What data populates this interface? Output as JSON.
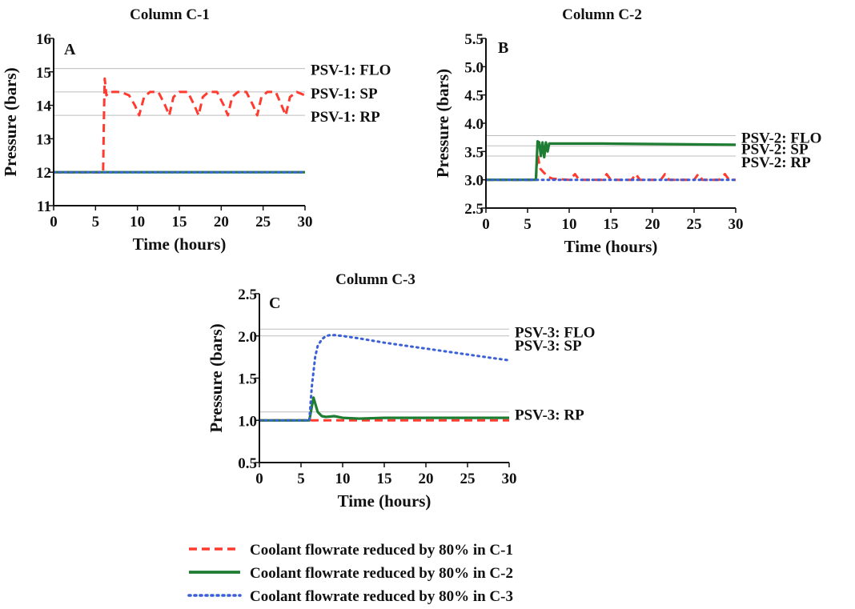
{
  "colors": {
    "c1": "#ff3b30",
    "c2": "#1e7d32",
    "c3": "#3a5fd6",
    "ref": "#bdbdbd",
    "axis": "#111111"
  },
  "legend": [
    {
      "series": "c1",
      "style": "dash",
      "label": "Coolant flowrate reduced by 80% in C-1"
    },
    {
      "series": "c2",
      "style": "solid",
      "label": "Coolant flowrate reduced by 80% in C-2"
    },
    {
      "series": "c3",
      "style": "dot",
      "label": "Coolant flowrate reduced by 80% in C-3"
    }
  ],
  "chart_data": [
    {
      "type": "line",
      "title": "Column C-1",
      "panel": "A",
      "xlabel": "Time (hours)",
      "ylabel": "Pressure (bars)",
      "xlim": [
        0,
        30
      ],
      "ylim": [
        11,
        16
      ],
      "xticks": [
        0,
        5,
        10,
        15,
        20,
        25,
        30
      ],
      "yticks": [
        11,
        12,
        13,
        14,
        15,
        16
      ],
      "ytick_labels": [
        "11",
        "12",
        "13",
        "14",
        "15",
        "16"
      ],
      "reference_lines": [
        {
          "label": "PSV-1: FLO",
          "y": 15.1
        },
        {
          "label": "PSV-1: SP",
          "y": 14.4
        },
        {
          "label": "PSV-1: RP",
          "y": 13.7
        }
      ],
      "series": [
        {
          "key": "c1",
          "x": [
            0,
            5.9,
            6.0,
            6.1,
            6.3,
            6.6,
            7,
            8,
            9,
            9.7,
            10.2,
            10.8,
            11.5,
            12.5,
            13.3,
            13.8,
            14.3,
            15,
            16,
            16.8,
            17.3,
            17.8,
            18.5,
            19.5,
            20.3,
            20.8,
            21.3,
            22,
            23,
            23.8,
            24.3,
            24.8,
            25.5,
            26.5,
            27.2,
            27.7,
            28.2,
            29,
            29.5,
            30
          ],
          "y": [
            12,
            12,
            13.6,
            14.8,
            14.3,
            14.4,
            14.4,
            14.4,
            14.3,
            14.0,
            13.7,
            14.25,
            14.4,
            14.4,
            14.0,
            13.7,
            14.25,
            14.4,
            14.4,
            14.0,
            13.7,
            14.25,
            14.4,
            14.4,
            14.0,
            13.7,
            14.25,
            14.4,
            14.4,
            14.0,
            13.7,
            14.25,
            14.4,
            14.4,
            14.0,
            13.7,
            14.25,
            14.4,
            14.35,
            14.3
          ]
        },
        {
          "key": "c2",
          "x": [
            0,
            30
          ],
          "y": [
            12,
            12
          ]
        },
        {
          "key": "c3",
          "x": [
            0,
            30
          ],
          "y": [
            12,
            12
          ]
        }
      ]
    },
    {
      "type": "line",
      "title": "Column C-2",
      "panel": "B",
      "xlabel": "Time (hours)",
      "ylabel": "Pressure (bars)",
      "xlim": [
        0,
        30
      ],
      "ylim": [
        2.5,
        5.5
      ],
      "xticks": [
        0,
        5,
        10,
        15,
        20,
        25,
        30
      ],
      "yticks": [
        2.5,
        3.0,
        3.5,
        4.0,
        4.5,
        5.0,
        5.5
      ],
      "ytick_labels": [
        "2.5",
        "3.0",
        "3.5",
        "4.0",
        "4.5",
        "5.0",
        "5.5"
      ],
      "reference_lines": [
        {
          "label": "PSV-2: FLO",
          "y": 3.78
        },
        {
          "label": "PSV-2: SP",
          "y": 3.6
        },
        {
          "label": "PSV-2: RP",
          "y": 3.42
        }
      ],
      "series": [
        {
          "key": "c1",
          "x": [
            0,
            6.0,
            6.2,
            6.5,
            7,
            7.5,
            8,
            10,
            10.7,
            11.2,
            12,
            14,
            14.5,
            15,
            16,
            17.5,
            18,
            18.5,
            20,
            21,
            21.5,
            22,
            24,
            25,
            25.5,
            26,
            28,
            28.7,
            29.2,
            30
          ],
          "y": [
            3.0,
            3.0,
            3.45,
            3.2,
            3.12,
            3.05,
            3.02,
            3.0,
            3.1,
            3.0,
            3.0,
            3.0,
            3.1,
            3.0,
            3.0,
            3.0,
            3.1,
            3.0,
            3.0,
            3.0,
            3.1,
            3.0,
            3.0,
            3.0,
            3.1,
            3.0,
            3.0,
            3.1,
            3.0,
            3.0
          ]
        },
        {
          "key": "c2",
          "x": [
            0,
            6.0,
            6.2,
            6.4,
            6.6,
            6.8,
            7.0,
            7.2,
            7.4,
            7.6,
            8,
            14,
            30
          ],
          "y": [
            3.0,
            3.0,
            3.68,
            3.66,
            3.42,
            3.66,
            3.4,
            3.66,
            3.5,
            3.64,
            3.64,
            3.64,
            3.62
          ]
        },
        {
          "key": "c3",
          "x": [
            0,
            30
          ],
          "y": [
            3.0,
            3.0
          ]
        }
      ]
    },
    {
      "type": "line",
      "title": "Column C-3",
      "panel": "C",
      "xlabel": "Time (hours)",
      "ylabel": "Pressure (bars)",
      "xlim": [
        0,
        30
      ],
      "ylim": [
        0.5,
        2.5
      ],
      "xticks": [
        0,
        5,
        10,
        15,
        20,
        25,
        30
      ],
      "yticks": [
        0.5,
        1.0,
        1.5,
        2.0,
        2.5
      ],
      "ytick_labels": [
        "0.5",
        "1.0",
        "1.5",
        "2.0",
        "2.5"
      ],
      "reference_lines": [
        {
          "label": "PSV-3: FLO",
          "y": 2.08
        },
        {
          "label": "PSV-3: SP",
          "y": 2.0
        },
        {
          "label": "PSV-3: RP",
          "y": 1.1
        }
      ],
      "series": [
        {
          "key": "c1",
          "x": [
            0,
            30
          ],
          "y": [
            1.0,
            1.0
          ]
        },
        {
          "key": "c2",
          "x": [
            0,
            6.0,
            6.5,
            7.0,
            7.5,
            8,
            9,
            10,
            12,
            15,
            30
          ],
          "y": [
            1.0,
            1.0,
            1.27,
            1.1,
            1.05,
            1.04,
            1.05,
            1.03,
            1.02,
            1.03,
            1.03
          ]
        },
        {
          "key": "c3",
          "x": [
            0,
            6.0,
            6.3,
            6.7,
            7,
            7.5,
            8,
            8.5,
            9,
            10,
            12,
            15,
            20,
            25,
            30
          ],
          "y": [
            1.0,
            1.0,
            1.4,
            1.75,
            1.88,
            1.96,
            2.0,
            2.01,
            2.01,
            2.0,
            1.97,
            1.92,
            1.85,
            1.78,
            1.71
          ]
        }
      ]
    }
  ]
}
